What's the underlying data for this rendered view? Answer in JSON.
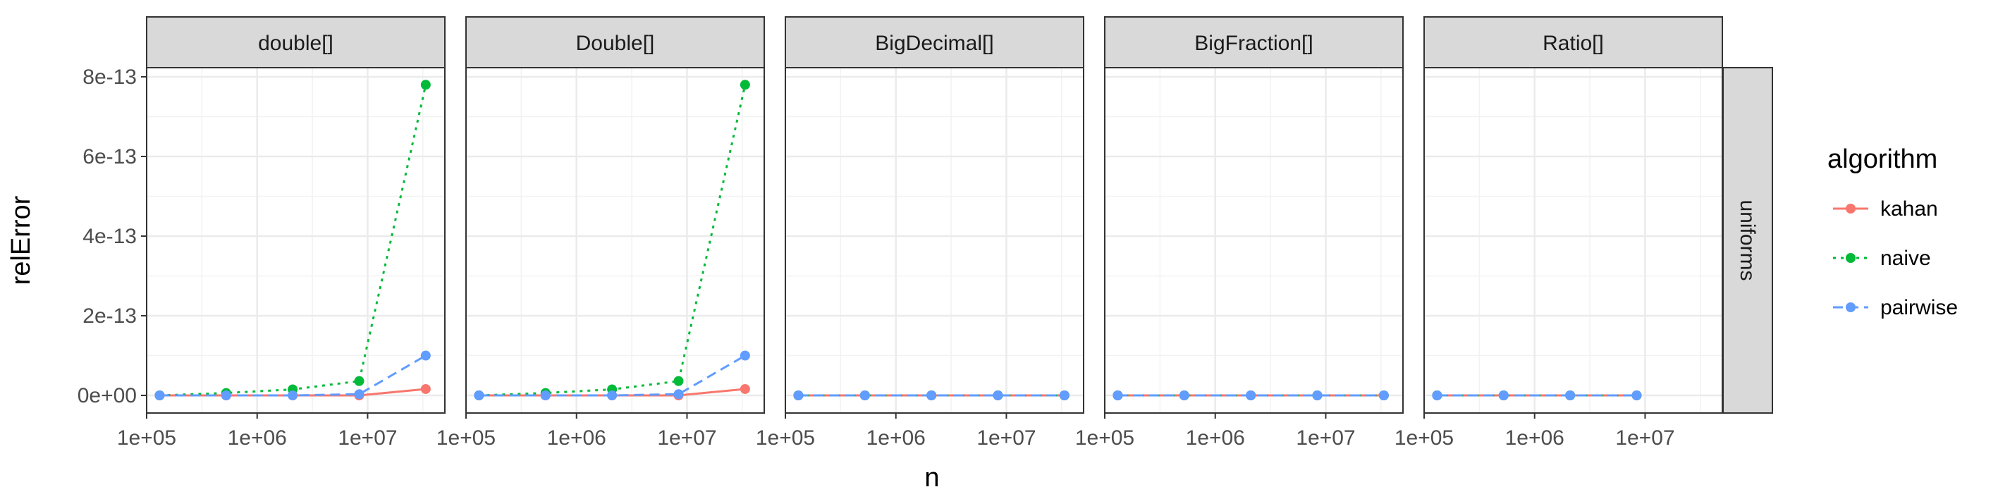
{
  "chart_data": {
    "type": "line",
    "facet_columns": [
      "double[]",
      "Double[]",
      "BigDecimal[]",
      "BigFraction[]",
      "Ratio[]"
    ],
    "facet_row": "uniforms",
    "xlabel": "n",
    "ylabel": "relError",
    "x_scale": "log10",
    "xlim": [
      100000,
      50000000
    ],
    "ylim": [
      0,
      8.3e-13
    ],
    "x_ticks": [
      100000,
      1000000,
      10000000
    ],
    "x_tick_labels": [
      "1e+05",
      "1e+06",
      "1e+07"
    ],
    "y_ticks": [
      0,
      2e-13,
      4e-13,
      6e-13,
      8e-13
    ],
    "y_tick_labels": [
      "0e+00",
      "2e-13",
      "4e-13",
      "6e-13",
      "8e-13"
    ],
    "grid": true,
    "legend": {
      "title": "algorithm",
      "placement": "right",
      "entries": [
        "kahan",
        "naive",
        "pairwise"
      ]
    },
    "series": [
      {
        "name": "kahan",
        "color": "#F8766D",
        "dash": "solid",
        "panels": [
          {
            "x": [
              131072,
              524288,
              2097152,
              8388608,
              33554432
            ],
            "y": [
              0,
              0,
              0,
              0,
              1.6e-14
            ]
          },
          {
            "x": [
              131072,
              524288,
              2097152,
              8388608,
              33554432
            ],
            "y": [
              0,
              0,
              0,
              0,
              1.6e-14
            ]
          },
          {
            "x": [
              131072,
              524288,
              2097152,
              8388608,
              33554432
            ],
            "y": [
              0,
              0,
              0,
              0,
              0
            ]
          },
          {
            "x": [
              131072,
              524288,
              2097152,
              8388608,
              33554432
            ],
            "y": [
              0,
              0,
              0,
              0,
              0
            ]
          },
          {
            "x": [
              131072,
              524288,
              2097152,
              8388608
            ],
            "y": [
              0,
              0,
              0,
              0
            ]
          }
        ]
      },
      {
        "name": "naive",
        "color": "#00BA38",
        "dash": "dotted",
        "panels": [
          {
            "x": [
              131072,
              524288,
              2097152,
              8388608,
              33554432
            ],
            "y": [
              0,
              6e-15,
              1.5e-14,
              3.6e-14,
              7.8e-13
            ]
          },
          {
            "x": [
              131072,
              524288,
              2097152,
              8388608,
              33554432
            ],
            "y": [
              0,
              6e-15,
              1.5e-14,
              3.6e-14,
              7.8e-13
            ]
          },
          {
            "x": [
              131072,
              524288,
              2097152,
              8388608,
              33554432
            ],
            "y": [
              0,
              0,
              0,
              0,
              0
            ]
          },
          {
            "x": [
              131072,
              524288,
              2097152,
              8388608,
              33554432
            ],
            "y": [
              0,
              0,
              0,
              0,
              0
            ]
          },
          {
            "x": [
              131072,
              524288,
              2097152,
              8388608
            ],
            "y": [
              0,
              0,
              0,
              0
            ]
          }
        ]
      },
      {
        "name": "pairwise",
        "color": "#619CFF",
        "dash": "dashed",
        "panels": [
          {
            "x": [
              131072,
              524288,
              2097152,
              8388608,
              33554432
            ],
            "y": [
              0,
              0,
              0,
              3e-15,
              1e-13
            ]
          },
          {
            "x": [
              131072,
              524288,
              2097152,
              8388608,
              33554432
            ],
            "y": [
              0,
              0,
              0,
              3e-15,
              1e-13
            ]
          },
          {
            "x": [
              131072,
              524288,
              2097152,
              8388608,
              33554432
            ],
            "y": [
              0,
              0,
              0,
              0,
              0
            ]
          },
          {
            "x": [
              131072,
              524288,
              2097152,
              8388608,
              33554432
            ],
            "y": [
              0,
              0,
              0,
              0,
              0
            ]
          },
          {
            "x": [
              131072,
              524288,
              2097152,
              8388608
            ],
            "y": [
              0,
              0,
              0,
              0
            ]
          }
        ]
      }
    ]
  }
}
